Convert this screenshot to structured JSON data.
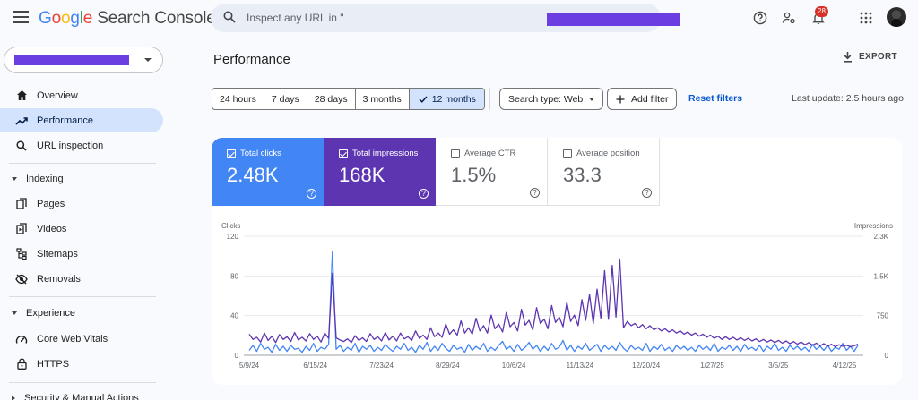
{
  "app": {
    "title_parts": [
      "G",
      "o",
      "o",
      "g",
      "l",
      "e"
    ],
    "product": "Search Console"
  },
  "search": {
    "placeholder": "Inspect any URL in \""
  },
  "notifications": {
    "count": "28"
  },
  "icons": {
    "menu": "menu-icon",
    "search": "search-icon",
    "help": "help-icon",
    "account_settings": "manage-accounts-icon",
    "bell": "bell-icon",
    "apps": "apps-grid-icon"
  },
  "sidebar": {
    "items": [
      {
        "label": "Overview",
        "icon": "home-icon"
      },
      {
        "label": "Performance",
        "icon": "trending-up-icon",
        "active": true
      },
      {
        "label": "URL inspection",
        "icon": "search-icon"
      }
    ],
    "indexing": {
      "label": "Indexing",
      "items": [
        {
          "label": "Pages",
          "icon": "pages-icon"
        },
        {
          "label": "Videos",
          "icon": "video-icon"
        },
        {
          "label": "Sitemaps",
          "icon": "sitemap-icon"
        },
        {
          "label": "Removals",
          "icon": "visibility-off-icon"
        }
      ]
    },
    "experience": {
      "label": "Experience",
      "items": [
        {
          "label": "Core Web Vitals",
          "icon": "speed-icon"
        },
        {
          "label": "HTTPS",
          "icon": "lock-icon"
        }
      ]
    },
    "security": {
      "label": "Security & Manual Actions"
    }
  },
  "main": {
    "title": "Performance",
    "export_label": "EXPORT",
    "ranges": [
      "24 hours",
      "7 days",
      "28 days",
      "3 months",
      "12 months"
    ],
    "active_range": "12 months",
    "search_type": "Search type: Web",
    "add_filter": "Add filter",
    "reset_filters": "Reset filters",
    "last_update": "Last update: 2.5 hours ago"
  },
  "metrics": [
    {
      "label": "Total clicks",
      "value": "2.48K",
      "checked": true,
      "color": "#4285f4"
    },
    {
      "label": "Total impressions",
      "value": "168K",
      "checked": true,
      "color": "#5e35b1"
    },
    {
      "label": "Average CTR",
      "value": "1.5%",
      "checked": false
    },
    {
      "label": "Average position",
      "value": "33.3",
      "checked": false
    }
  ],
  "chart_data": {
    "type": "line",
    "left_axis": {
      "label": "Clicks",
      "ticks": [
        0,
        40,
        80,
        120
      ],
      "tick_labels": [
        "0",
        "40",
        "80",
        "120"
      ],
      "range": [
        0,
        120
      ]
    },
    "right_axis": {
      "label": "Impressions",
      "ticks": [
        0,
        750,
        1500,
        2250
      ],
      "tick_labels": [
        "0",
        "750",
        "1.5K",
        "2.3K"
      ],
      "range": [
        0,
        2250
      ]
    },
    "x_tick_labels": [
      "5/9/24",
      "6/15/24",
      "7/23/24",
      "8/29/24",
      "10/6/24",
      "11/13/24",
      "12/20/24",
      "1/27/25",
      "3/5/25",
      "4/12/25"
    ],
    "series": [
      {
        "name": "Total clicks",
        "axis": "left",
        "color": "#4285f4",
        "values": [
          5,
          10,
          4,
          12,
          6,
          8,
          3,
          11,
          5,
          9,
          4,
          10,
          6,
          7,
          3,
          9,
          5,
          12,
          4,
          8,
          6,
          11,
          105,
          6,
          10,
          4,
          8,
          5,
          12,
          3,
          9,
          6,
          10,
          4,
          8,
          5,
          11,
          7,
          4,
          9,
          6,
          12,
          5,
          8,
          3,
          10,
          6,
          13,
          4,
          9,
          5,
          12,
          7,
          4,
          10,
          6,
          8,
          3,
          11,
          5,
          9,
          6,
          12,
          4,
          8,
          5,
          10,
          14,
          6,
          9,
          4,
          11,
          5,
          8,
          13,
          6,
          10,
          4,
          9,
          5,
          12,
          6,
          8,
          15,
          5,
          10,
          4,
          9,
          6,
          12,
          5,
          8,
          11,
          4,
          10,
          6,
          9,
          5,
          13,
          7,
          4,
          10,
          6,
          8,
          5,
          12,
          4,
          9,
          6,
          11,
          5,
          8,
          4,
          10,
          6,
          9,
          5,
          8,
          4,
          10,
          6,
          9,
          5,
          12,
          4,
          8,
          6,
          10,
          5,
          9,
          4,
          11,
          6,
          8,
          5,
          10,
          4,
          9,
          6,
          12,
          5,
          8,
          4,
          10,
          6,
          9,
          5,
          8,
          4,
          11,
          6,
          9,
          5,
          10,
          4,
          8,
          6,
          12,
          5,
          9,
          4,
          10
        ]
      },
      {
        "name": "Total impressions",
        "axis": "right",
        "color": "#5e35b1",
        "values": [
          400,
          300,
          340,
          250,
          420,
          280,
          360,
          240,
          390,
          300,
          350,
          260,
          430,
          290,
          340,
          270,
          410,
          300,
          360,
          250,
          420,
          320,
          1550,
          330,
          290,
          260,
          310,
          240,
          370,
          280,
          330,
          260,
          410,
          300,
          350,
          270,
          430,
          290,
          360,
          270,
          420,
          310,
          350,
          280,
          460,
          320,
          380,
          300,
          520,
          350,
          420,
          340,
          590,
          400,
          480,
          380,
          650,
          420,
          520,
          400,
          700,
          460,
          560,
          420,
          760,
          500,
          590,
          440,
          810,
          540,
          620,
          460,
          870,
          570,
          660,
          480,
          900,
          600,
          680,
          500,
          940,
          620,
          720,
          540,
          1000,
          640,
          760,
          560,
          1050,
          660,
          1150,
          600,
          1250,
          700,
          1600,
          680,
          1700,
          720,
          1820,
          520,
          640,
          560,
          600,
          520,
          580,
          500,
          560,
          480,
          520,
          460,
          500,
          440,
          480,
          420,
          460,
          400,
          440,
          380,
          420,
          360,
          400,
          340,
          380,
          320,
          360,
          300,
          350,
          300,
          340,
          290,
          330,
          280,
          320,
          270,
          310,
          260,
          300,
          250,
          290,
          240,
          280,
          230,
          270,
          220,
          260,
          210,
          250,
          200,
          240,
          190,
          230,
          180,
          220,
          170,
          210,
          160,
          200,
          170,
          190,
          160,
          180,
          210
        ]
      }
    ]
  }
}
